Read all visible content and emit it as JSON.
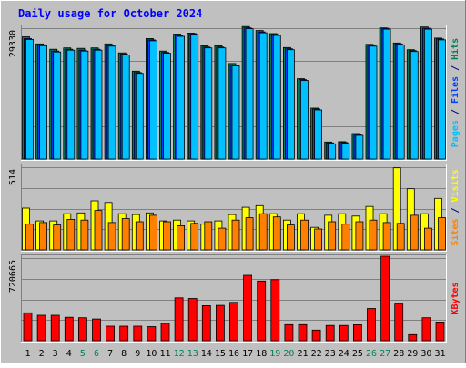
{
  "chart_data": {
    "type": "bar",
    "title": "Daily usage for October 2024",
    "categories": [
      "1",
      "2",
      "3",
      "4",
      "5",
      "6",
      "7",
      "8",
      "9",
      "10",
      "11",
      "12",
      "13",
      "14",
      "15",
      "16",
      "17",
      "18",
      "19",
      "20",
      "21",
      "22",
      "23",
      "24",
      "25",
      "26",
      "27",
      "28",
      "29",
      "30",
      "31"
    ],
    "weekend_days": [
      "5",
      "6",
      "12",
      "13",
      "19",
      "20",
      "26",
      "27"
    ],
    "panels": [
      {
        "id": "top",
        "ymax": 29330,
        "ytick_label": "29330",
        "axis_label_parts": [
          {
            "text": "Pages",
            "color": "#00C0FF"
          },
          {
            "text": " / ",
            "color": "#000080"
          },
          {
            "text": "Files",
            "color": "#0040FF"
          },
          {
            "text": " / ",
            "color": "#000080"
          },
          {
            "text": "Hits",
            "color": "#00805C"
          }
        ],
        "series": [
          {
            "color": "#00805C",
            "values": [
              27400,
              25800,
              24600,
              24900,
              24800,
              24900,
              25800,
              23800,
              19700,
              27000,
              24200,
              28000,
              28200,
              25400,
              25400,
              21400,
              29700,
              28800,
              28100,
              25000,
              18000,
              11400,
              3800,
              3900,
              5700,
              25700,
              29400,
              26000,
              24500,
              29600,
              27100
            ]
          },
          {
            "color": "#0040FF",
            "values": [
              27000,
              25600,
              24200,
              24600,
              24400,
              24600,
              25500,
              23500,
              19400,
              26700,
              23900,
              27700,
              28100,
              25100,
              25100,
              21100,
              29400,
              28500,
              27900,
              24700,
              17800,
              11200,
              3600,
              3700,
              5500,
              25500,
              29300,
              25800,
              24300,
              29300,
              26900
            ]
          },
          {
            "color": "#00C0FF",
            "values": [
              26800,
              25400,
              24000,
              24400,
              24200,
              24400,
              25300,
              23300,
              19200,
              26500,
              23700,
              27500,
              27900,
              24900,
              24900,
              20900,
              29200,
              28300,
              27700,
              24500,
              17600,
              11000,
              3400,
              3500,
              5300,
              25300,
              29100,
              25600,
              24100,
              29100,
              26700
            ]
          }
        ]
      },
      {
        "id": "mid",
        "ymax": 514,
        "ytick_label": "514",
        "axis_label_parts": [
          {
            "text": "Sites",
            "color": "#FF8000"
          },
          {
            "text": " / ",
            "color": "#000080"
          },
          {
            "text": "Visits",
            "color": "#FFFF00"
          }
        ],
        "series": [
          {
            "color": "#FFFF00",
            "values": [
              260,
              180,
              180,
              225,
              230,
              305,
              295,
              225,
              220,
              230,
              180,
              185,
              180,
              160,
              180,
              220,
              265,
              275,
              225,
              185,
              225,
              140,
              215,
              225,
              210,
              270,
              225,
              510,
              380,
              225,
              320
            ]
          },
          {
            "color": "#FF8000",
            "values": [
              160,
              170,
              155,
              190,
              185,
              245,
              170,
              195,
              175,
              215,
              175,
              150,
              165,
              175,
              135,
              185,
              200,
              225,
              205,
              155,
              185,
              130,
              175,
              160,
              175,
              185,
              170,
              165,
              215,
              135,
              200
            ]
          }
        ]
      },
      {
        "id": "bot",
        "ymax": 720665,
        "ytick_label": "720665",
        "axis_label_parts": [
          {
            "text": "KBytes",
            "color": "#FF0000"
          }
        ],
        "series": [
          {
            "color": "#FF0000",
            "values": [
              243000,
              222000,
              222000,
              204000,
              200000,
              189000,
              127000,
              127000,
              127000,
              123000,
              151000,
              374000,
              368000,
              306000,
              308000,
              334000,
              570000,
              520000,
              532000,
              140000,
              140000,
              93000,
              133000,
              133000,
              139000,
              281000,
              738000,
              320000,
              53000,
              200000,
              163000
            ]
          }
        ]
      }
    ]
  }
}
